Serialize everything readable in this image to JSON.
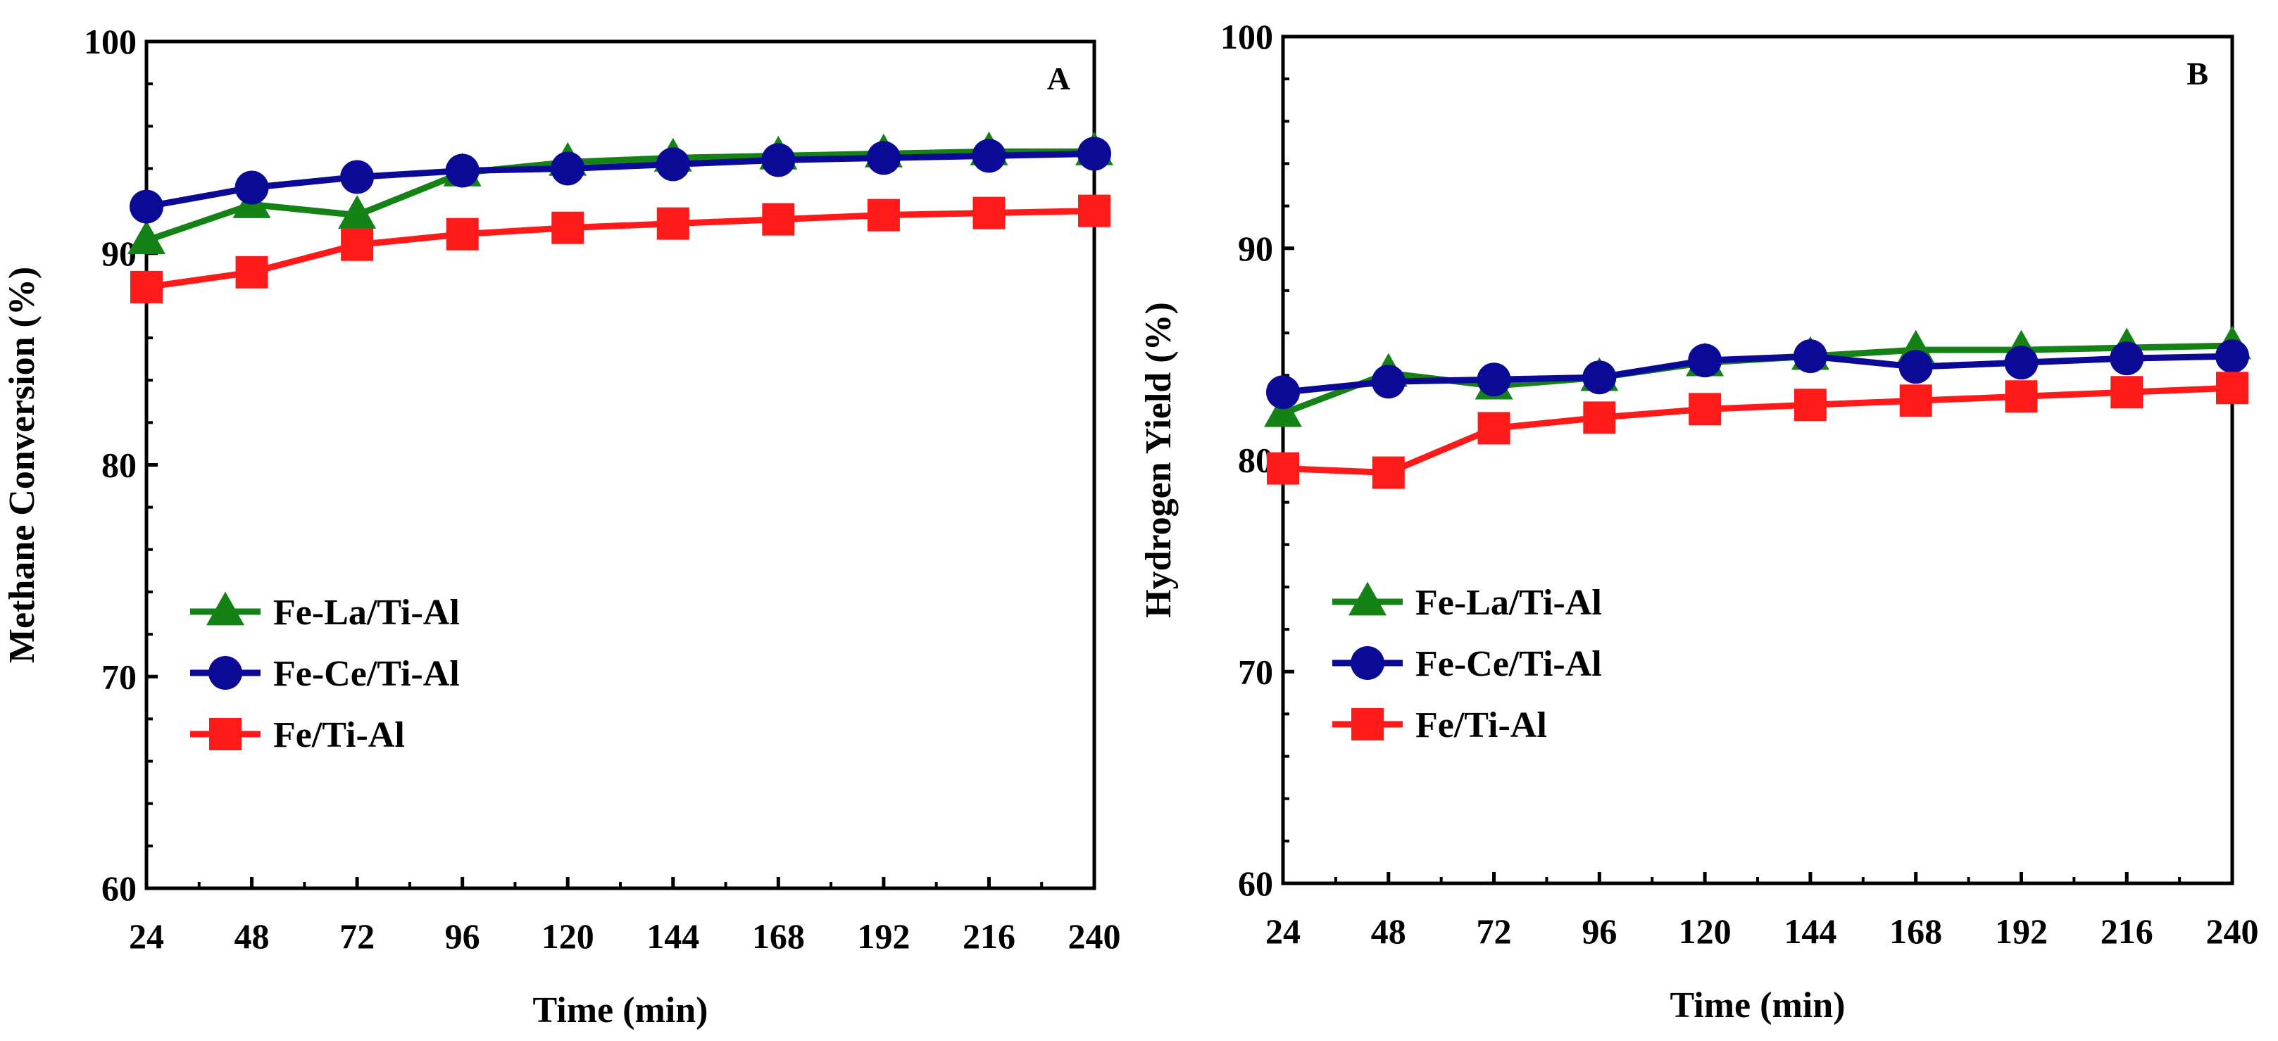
{
  "chart_data": [
    {
      "type": "line",
      "panel_label": "A",
      "title": "",
      "xlabel": "Time (min)",
      "ylabel": "Methane Conversion (%)",
      "xlim": [
        24,
        240
      ],
      "ylim": [
        60,
        100
      ],
      "x": [
        24,
        48,
        72,
        96,
        120,
        144,
        168,
        192,
        216,
        240
      ],
      "x_tick_labels": [
        "24",
        "48",
        "72",
        "96",
        "120",
        "144",
        "168",
        "192",
        "216",
        "240"
      ],
      "y_ticks": [
        60,
        70,
        80,
        90,
        100
      ],
      "y_tick_labels": [
        "60",
        "70",
        "80",
        "90",
        "100"
      ],
      "legend_position": "center-left",
      "series": [
        {
          "name": "Fe-La/Ti-Al",
          "marker": "triangle",
          "color": "#148214",
          "values": [
            90.6,
            92.3,
            91.8,
            93.8,
            94.3,
            94.5,
            94.6,
            94.7,
            94.8,
            94.8
          ]
        },
        {
          "name": "Fe-Ce/Ti-Al",
          "marker": "circle",
          "color": "#0a0a96",
          "values": [
            92.2,
            93.1,
            93.6,
            93.9,
            94.0,
            94.2,
            94.4,
            94.5,
            94.6,
            94.7
          ]
        },
        {
          "name": "Fe/Ti-Al",
          "marker": "square",
          "color": "#ff1a1a",
          "values": [
            88.4,
            89.1,
            90.4,
            90.9,
            91.2,
            91.4,
            91.6,
            91.8,
            91.9,
            92.0
          ]
        }
      ]
    },
    {
      "type": "line",
      "panel_label": "B",
      "title": "",
      "xlabel": "Time (min)",
      "ylabel": "Hydrogen Yield (%)",
      "xlim": [
        24,
        240
      ],
      "ylim": [
        60,
        100
      ],
      "x": [
        24,
        48,
        72,
        96,
        120,
        144,
        168,
        192,
        216,
        240
      ],
      "x_tick_labels": [
        "24",
        "48",
        "72",
        "96",
        "120",
        "144",
        "168",
        "192",
        "216",
        "240"
      ],
      "y_ticks": [
        60,
        70,
        80,
        90,
        100
      ],
      "y_tick_labels": [
        "60",
        "70",
        "80",
        "90",
        "100"
      ],
      "legend_position": "center-left",
      "series": [
        {
          "name": "Fe-La/Ti-Al",
          "marker": "triangle",
          "color": "#148214",
          "values": [
            82.2,
            84.1,
            83.5,
            83.9,
            84.6,
            84.9,
            85.2,
            85.2,
            85.3,
            85.4
          ]
        },
        {
          "name": "Fe-Ce/Ti-Al",
          "marker": "circle",
          "color": "#0a0a96",
          "values": [
            83.2,
            83.7,
            83.8,
            83.9,
            84.7,
            84.9,
            84.4,
            84.6,
            84.8,
            84.9
          ]
        },
        {
          "name": "Fe/Ti-Al",
          "marker": "square",
          "color": "#ff1a1a",
          "values": [
            79.6,
            79.4,
            81.5,
            82.0,
            82.4,
            82.6,
            82.8,
            83.0,
            83.2,
            83.4
          ]
        }
      ]
    }
  ]
}
